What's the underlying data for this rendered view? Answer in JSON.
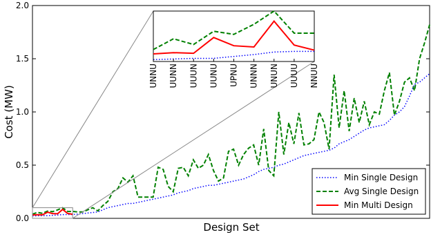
{
  "chart_data": [
    {
      "type": "line",
      "ylabel": "Cost (MW)",
      "xlabel": "Design Set",
      "ylim": [
        0,
        2
      ],
      "yticks": [
        {
          "value": 0,
          "label": "0.0"
        },
        0.5,
        {
          "value": 1,
          "label": "1.0"
        },
        1.5,
        {
          "value": 2,
          "label": "2.0"
        }
      ],
      "legend": "lower right",
      "series": [
        {
          "name": "Min Single Design",
          "color": "#0000ff",
          "linestyle": "dotted",
          "values": [
            0.023,
            0.024,
            0.025,
            0.025,
            0.028,
            0.031,
            0.035,
            0.036,
            0.036,
            0.04,
            0.045,
            0.05,
            0.055,
            0.06,
            0.08,
            0.1,
            0.11,
            0.12,
            0.13,
            0.14,
            0.14,
            0.15,
            0.16,
            0.17,
            0.18,
            0.19,
            0.2,
            0.21,
            0.22,
            0.24,
            0.25,
            0.26,
            0.28,
            0.29,
            0.3,
            0.31,
            0.31,
            0.32,
            0.33,
            0.34,
            0.35,
            0.36,
            0.37,
            0.39,
            0.41,
            0.44,
            0.46,
            0.47,
            0.48,
            0.5,
            0.51,
            0.53,
            0.55,
            0.57,
            0.59,
            0.6,
            0.61,
            0.62,
            0.63,
            0.64,
            0.66,
            0.7,
            0.72,
            0.74,
            0.77,
            0.8,
            0.83,
            0.85,
            0.86,
            0.87,
            0.88,
            0.92,
            0.97,
            1.0,
            1.05,
            1.15,
            1.26,
            1.28,
            1.32,
            1.36
          ]
        },
        {
          "name": "Avg Single Design",
          "color": "#008000",
          "linestyle": "dashed",
          "values": [
            0.039,
            0.056,
            0.047,
            0.068,
            0.063,
            0.079,
            0.1,
            0.065,
            0.065,
            0.06,
            0.06,
            0.08,
            0.1,
            0.07,
            0.12,
            0.16,
            0.25,
            0.28,
            0.38,
            0.34,
            0.4,
            0.2,
            0.2,
            0.2,
            0.2,
            0.48,
            0.46,
            0.3,
            0.25,
            0.47,
            0.48,
            0.4,
            0.55,
            0.47,
            0.5,
            0.6,
            0.45,
            0.35,
            0.38,
            0.63,
            0.65,
            0.5,
            0.6,
            0.66,
            0.69,
            0.5,
            0.84,
            0.45,
            0.4,
            1.0,
            0.6,
            0.9,
            0.7,
            0.99,
            0.69,
            0.7,
            0.74,
            1.0,
            0.9,
            0.65,
            1.35,
            0.85,
            1.2,
            0.82,
            1.13,
            0.9,
            1.1,
            0.88,
            1.0,
            0.98,
            1.2,
            1.37,
            0.97,
            1.1,
            1.28,
            1.32,
            1.2,
            1.5,
            1.65,
            1.82
          ]
        },
        {
          "name": "Min Multi Design",
          "color": "#ff0000",
          "linestyle": "solid",
          "values": [
            0.032,
            0.034,
            0.033,
            0.058,
            0.045,
            0.043,
            0.084,
            0.046,
            0.038,
            null,
            null,
            null,
            null,
            null,
            null,
            null,
            null,
            null,
            null,
            null,
            null,
            null,
            null,
            null,
            null,
            null,
            null,
            null,
            null,
            null,
            null,
            null,
            null,
            null,
            null,
            null,
            null,
            null,
            null,
            null,
            null,
            null,
            null,
            null,
            null,
            null,
            null,
            null,
            null,
            null,
            null,
            null,
            null,
            null,
            null,
            null,
            null,
            null,
            null,
            null,
            null,
            null,
            null,
            null,
            null,
            null,
            null,
            null,
            null,
            null,
            null,
            null,
            null,
            null,
            null,
            null,
            null,
            null,
            null,
            null
          ]
        }
      ]
    },
    {
      "type": "line",
      "ylim": [
        0.02,
        0.1
      ],
      "categories": [
        "UNNU",
        "UUNN",
        "UUUN",
        "UUNU",
        "UPNU",
        "UNNN",
        "UNUN",
        "UUUU",
        "NNUU"
      ],
      "series": [
        {
          "color": "#0000ff",
          "linestyle": "dotted",
          "values": [
            0.023,
            0.024,
            0.025,
            0.025,
            0.028,
            0.031,
            0.035,
            0.036,
            0.036
          ]
        },
        {
          "color": "#008000",
          "linestyle": "dashed",
          "values": [
            0.039,
            0.056,
            0.047,
            0.068,
            0.063,
            0.079,
            0.1,
            0.065,
            0.065
          ]
        },
        {
          "color": "#ff0000",
          "linestyle": "solid",
          "values": [
            0.032,
            0.034,
            0.033,
            0.058,
            0.045,
            0.043,
            0.084,
            0.046,
            0.038
          ]
        }
      ]
    }
  ]
}
